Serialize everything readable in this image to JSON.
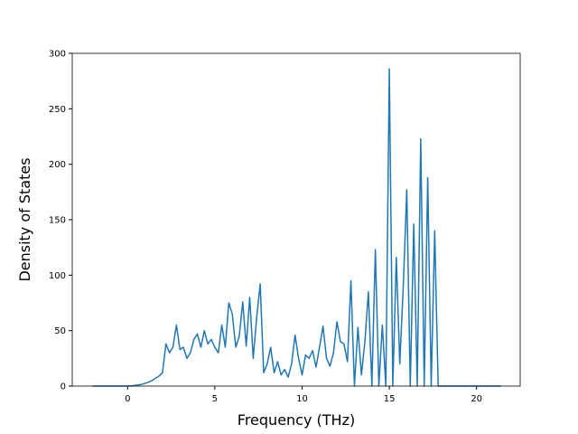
{
  "chart_data": {
    "type": "line",
    "x_label": "Frequency (THz)",
    "y_label": "Density of States",
    "x": [
      -2,
      -1.8,
      -1.6,
      -1.4,
      -1.2,
      -1,
      -0.8,
      -0.6,
      -0.4,
      -0.2,
      0,
      0.2,
      0.4,
      0.6,
      0.8,
      1,
      1.2,
      1.4,
      1.6,
      1.8,
      2,
      2.2,
      2.4,
      2.6,
      2.8,
      3,
      3.2,
      3.4,
      3.6,
      3.8,
      4,
      4.2,
      4.4,
      4.6,
      4.8,
      5,
      5.2,
      5.4,
      5.6,
      5.8,
      6,
      6.2,
      6.4,
      6.6,
      6.8,
      7,
      7.2,
      7.4,
      7.6,
      7.8,
      8,
      8.2,
      8.4,
      8.6,
      8.8,
      9,
      9.2,
      9.4,
      9.6,
      9.8,
      10,
      10.2,
      10.4,
      10.6,
      10.8,
      11,
      11.2,
      11.4,
      11.6,
      11.8,
      12,
      12.2,
      12.4,
      12.6,
      12.8,
      13,
      13.2,
      13.4,
      13.6,
      13.8,
      14,
      14.2,
      14.4,
      14.6,
      14.8,
      15,
      15.2,
      15.4,
      15.6,
      15.8,
      16,
      16.2,
      16.4,
      16.6,
      16.8,
      17,
      17.2,
      17.4,
      17.6,
      17.8,
      18,
      18.2,
      18.4,
      18.6,
      18.8,
      19,
      19.2,
      19.4,
      19.6,
      19.8,
      20,
      20.2,
      20.4,
      20.6,
      20.8,
      21,
      21.2,
      21.4
    ],
    "series": [
      {
        "color": "#1f77b4",
        "values": [
          0,
          0,
          0,
          0,
          0,
          0,
          0,
          0,
          0,
          0,
          0,
          0.2,
          0.5,
          1,
          1.5,
          2.5,
          3.5,
          5,
          7,
          9,
          12,
          38,
          30,
          35,
          55,
          33,
          35,
          25,
          30,
          42,
          47,
          35,
          50,
          38,
          42,
          35,
          30,
          55,
          35,
          75,
          65,
          35,
          45,
          76,
          36,
          80,
          25,
          62,
          92,
          12,
          20,
          35,
          12,
          22,
          10,
          15,
          8,
          20,
          46,
          25,
          10,
          28,
          25,
          32,
          17,
          35,
          54,
          25,
          18,
          30,
          58,
          40,
          38,
          22,
          95,
          0,
          53,
          10,
          40,
          85,
          0,
          123,
          0,
          55,
          0,
          286,
          0,
          116,
          20,
          90,
          177,
          0,
          146,
          0,
          223,
          0,
          188,
          0,
          140,
          0,
          0,
          0,
          0,
          0,
          0,
          0,
          0,
          0,
          0,
          0,
          0,
          0,
          0,
          0,
          0,
          0,
          0,
          0
        ]
      }
    ],
    "xlim": [
      -3.17,
      22.5
    ],
    "ylim": [
      0,
      300
    ],
    "xticks": [
      0,
      5,
      10,
      15,
      20
    ],
    "yticks": [
      0,
      50,
      100,
      150,
      200,
      250,
      300
    ]
  }
}
